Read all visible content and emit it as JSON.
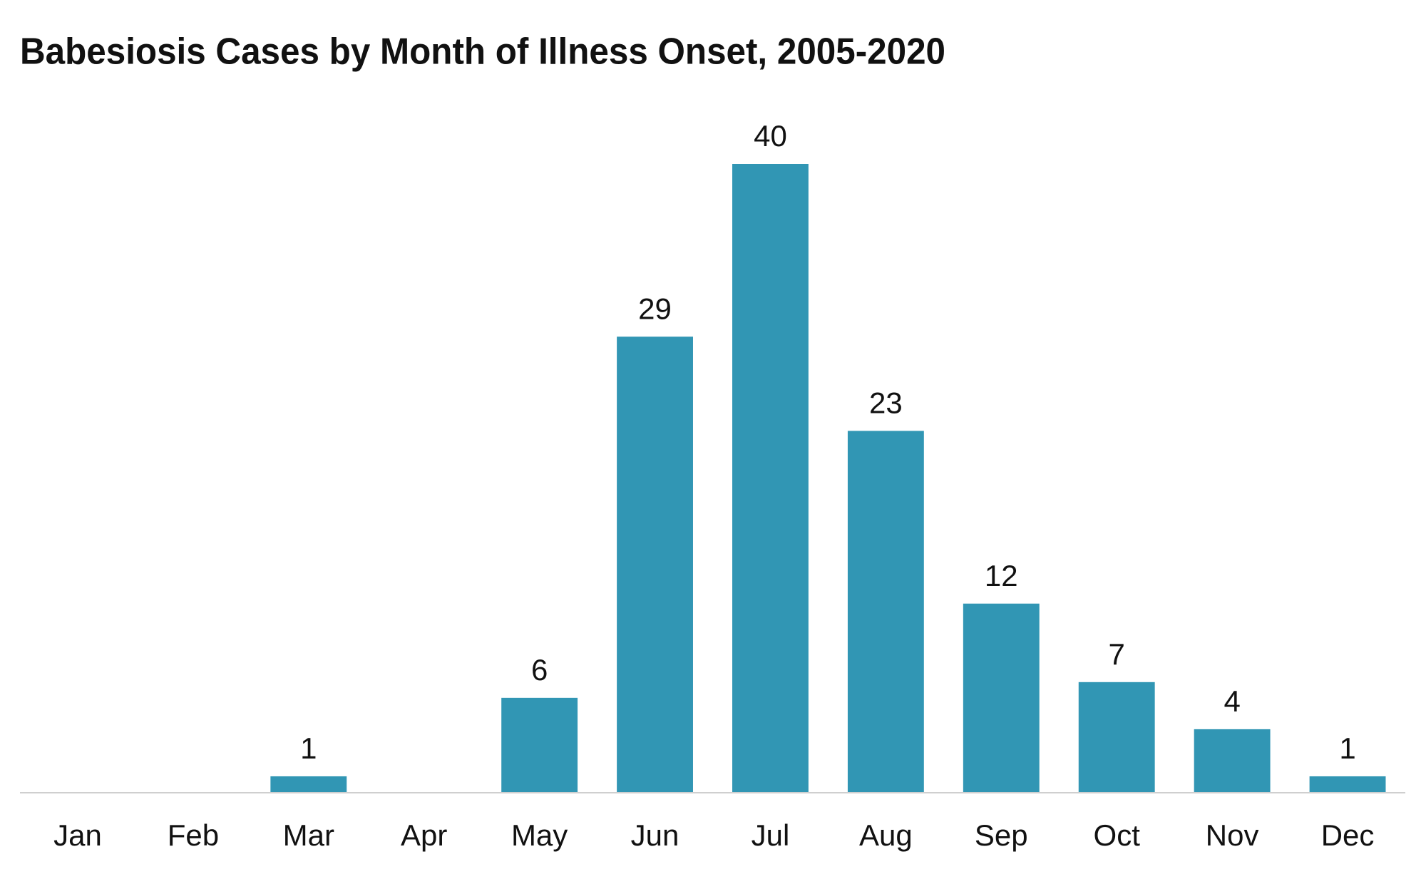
{
  "chart_data": {
    "type": "bar",
    "title": "Babesiosis Cases by Month of Illness Onset, 2005-2020",
    "categories": [
      "Jan",
      "Feb",
      "Mar",
      "Apr",
      "May",
      "Jun",
      "Jul",
      "Aug",
      "Sep",
      "Oct",
      "Nov",
      "Dec"
    ],
    "values": [
      null,
      null,
      1,
      null,
      6,
      29,
      40,
      23,
      12,
      7,
      4,
      1
    ],
    "color": "#3196b4"
  }
}
